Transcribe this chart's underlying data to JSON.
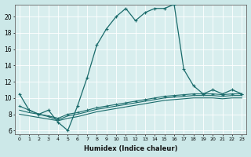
{
  "xlabel": "Humidex (Indice chaleur)",
  "background_color": "#cce8e8",
  "grid_color": "#b8d8d8",
  "plot_bg_color": "#d8eeee",
  "line_color": "#1a6b6b",
  "xlim": [
    -0.5,
    23.5
  ],
  "ylim": [
    5.5,
    21.5
  ],
  "xticks": [
    0,
    1,
    2,
    3,
    4,
    5,
    6,
    7,
    8,
    9,
    10,
    11,
    12,
    13,
    14,
    15,
    16,
    17,
    18,
    19,
    20,
    21,
    22,
    23
  ],
  "yticks": [
    6,
    8,
    10,
    12,
    14,
    16,
    18,
    20
  ],
  "s1_x": [
    0,
    1,
    2,
    3,
    4,
    5,
    6,
    7,
    8,
    9,
    10,
    11,
    12,
    13,
    14,
    15,
    16,
    17,
    18,
    19,
    20,
    21,
    22,
    23
  ],
  "s1_y": [
    10.5,
    8.5,
    8.0,
    8.5,
    7.0,
    6.0,
    9.0,
    12.5,
    16.5,
    18.5,
    20.0,
    21.0,
    19.5,
    20.5,
    21.0,
    21.0,
    21.5,
    13.5,
    11.5,
    10.5,
    11.0,
    10.5,
    11.0,
    10.5
  ],
  "s2_x": [
    0,
    1,
    2,
    3,
    4,
    5,
    6,
    7,
    8,
    9,
    10,
    11,
    12,
    13,
    14,
    15,
    16,
    17,
    18,
    19,
    20,
    21,
    22,
    23
  ],
  "s2_y": [
    9.0,
    8.5,
    8.0,
    7.8,
    7.5,
    8.0,
    8.2,
    8.5,
    8.8,
    9.0,
    9.2,
    9.4,
    9.6,
    9.8,
    10.0,
    10.2,
    10.3,
    10.4,
    10.5,
    10.5,
    10.5,
    10.4,
    10.5,
    10.5
  ],
  "s3_x": [
    0,
    1,
    2,
    3,
    4,
    5,
    6,
    7,
    8,
    9,
    10,
    11,
    12,
    13,
    14,
    15,
    16,
    17,
    18,
    19,
    20,
    21,
    22,
    23
  ],
  "s3_y": [
    8.5,
    8.2,
    8.0,
    7.7,
    7.3,
    7.8,
    8.0,
    8.3,
    8.6,
    8.8,
    9.0,
    9.2,
    9.4,
    9.6,
    9.8,
    10.0,
    10.1,
    10.2,
    10.3,
    10.3,
    10.3,
    10.2,
    10.3,
    10.3
  ],
  "s4_x": [
    0,
    1,
    2,
    3,
    4,
    5,
    6,
    7,
    8,
    9,
    10,
    11,
    12,
    13,
    14,
    15,
    16,
    17,
    18,
    19,
    20,
    21,
    22,
    23
  ],
  "s4_y": [
    8.0,
    7.8,
    7.6,
    7.4,
    7.2,
    7.5,
    7.7,
    8.0,
    8.3,
    8.5,
    8.7,
    8.9,
    9.1,
    9.3,
    9.5,
    9.7,
    9.8,
    9.9,
    10.0,
    10.0,
    10.0,
    9.9,
    10.0,
    10.0
  ]
}
